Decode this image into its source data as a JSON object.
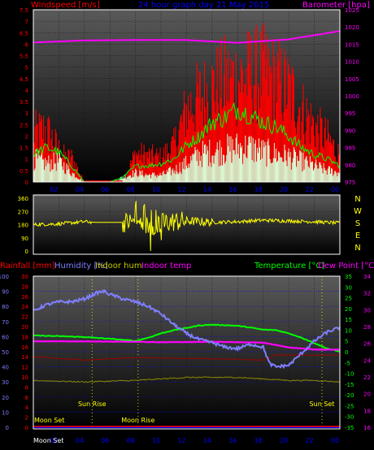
{
  "header": {
    "windspeed_label": "Windspeed [m/s]",
    "title": "24 hour graph day  21 May 2015",
    "barometer_label": "Barometer [hpa]"
  },
  "colors": {
    "red": "#ff0000",
    "blue": "#0000ff",
    "magenta": "#ff00ff",
    "green": "#00ff00",
    "yellow": "#ffff00",
    "lightblue": "#7f7fff",
    "grey": "#9a9aaa",
    "panel_top": "#5a5a5a",
    "panel_bottom": "#000000",
    "white": "#ffffff"
  },
  "chart_data": [
    {
      "type": "line",
      "panel": "wind",
      "x_ticks": [
        "02",
        "04",
        "06",
        "08",
        "10",
        "12",
        "14",
        "16",
        "18",
        "20",
        "22",
        "00"
      ],
      "y_left_ticks": [
        "0",
        "0.5",
        "1",
        "1.5",
        "2",
        "2.5",
        "3",
        "3.5",
        "4",
        "4.5",
        "5",
        "5.5",
        "6",
        "6.5",
        "7",
        "7.5"
      ],
      "ylim_left": [
        0,
        7.5
      ],
      "y_right_ticks": [
        "975",
        "980",
        "985",
        "990",
        "995",
        "1000",
        "1005",
        "1010",
        "1015",
        "1020",
        "1025"
      ],
      "ylim_right": [
        975,
        1025
      ],
      "grid": true,
      "series": [
        {
          "axis": "right",
          "color": "magenta",
          "hours": [
            0,
            4,
            8,
            12,
            16,
            20,
            24
          ],
          "values": [
            1015.5,
            1016.1,
            1016.2,
            1016.2,
            1015.4,
            1016.4,
            1018.8
          ]
        },
        {
          "axis": "left",
          "color": "red",
          "kind": "gust",
          "hours": [
            0,
            1,
            2,
            2.5,
            3,
            4,
            6,
            7,
            8,
            9,
            10,
            11,
            12,
            13,
            14,
            15,
            16,
            17,
            18,
            19,
            20,
            21,
            22,
            23,
            24
          ],
          "values": [
            2.4,
            2.6,
            1.6,
            1.2,
            1.2,
            0.0,
            0.0,
            0.0,
            1.4,
            1.3,
            1.2,
            1.8,
            3.6,
            4.2,
            4.6,
            5.0,
            5.1,
            5.3,
            5.4,
            5.0,
            4.6,
            3.6,
            2.8,
            2.2,
            1.3
          ]
        },
        {
          "axis": "left",
          "color": "green",
          "kind": "average",
          "hours": [
            0,
            1,
            2,
            3,
            4,
            6,
            7,
            8,
            9,
            10,
            11,
            12,
            13,
            14,
            15,
            16,
            17,
            18,
            19,
            20,
            21,
            22,
            23,
            24
          ],
          "values": [
            1.2,
            1.5,
            1.3,
            0.7,
            0.0,
            0.0,
            0.2,
            0.7,
            0.7,
            0.8,
            1.0,
            1.6,
            2.0,
            2.6,
            2.8,
            3.2,
            2.9,
            2.6,
            2.4,
            2.0,
            1.5,
            1.2,
            1.0,
            0.7
          ]
        },
        {
          "axis": "left",
          "color": "white",
          "kind": "speed",
          "hours": [
            0,
            1,
            2,
            3,
            4,
            6,
            7,
            8,
            9,
            10,
            11,
            12,
            13,
            14,
            15,
            16,
            17,
            18,
            19,
            20,
            21,
            22,
            23,
            24
          ],
          "values": [
            1.0,
            0.8,
            0.9,
            0.4,
            0.0,
            0.0,
            0.2,
            0.4,
            0.3,
            0.3,
            0.5,
            0.8,
            1.2,
            1.3,
            1.4,
            1.5,
            1.5,
            1.3,
            1.2,
            1.1,
            0.9,
            0.7,
            0.5,
            0.4
          ]
        }
      ]
    },
    {
      "type": "line",
      "panel": "direction",
      "y_ticks": [
        "0",
        "90",
        "180",
        "270",
        "360"
      ],
      "ylim": [
        0,
        360
      ],
      "compass_labels": [
        "N",
        "W",
        "S",
        "E",
        "N"
      ],
      "series": [
        {
          "color": "yellow",
          "hours": [
            0,
            2,
            4,
            5,
            6,
            7,
            8,
            9,
            10,
            11,
            12,
            14,
            16,
            18,
            20,
            22,
            24
          ],
          "values": [
            180,
            185,
            200,
            195,
            195,
            195,
            200,
            170,
            190,
            200,
            205,
            195,
            200,
            210,
            205,
            200,
            190
          ]
        }
      ]
    },
    {
      "type": "line",
      "panel": "temperature",
      "labels": {
        "rainfall": "Rainfall [mm]",
        "humidity": "Humidity [%]",
        "indoor_hum": "Indoor hum",
        "indoor_temp": "Indoor temp",
        "temperature": "Temperature [°C]",
        "dew_point": "Dew Point [°C]"
      },
      "y_humidity_ticks": [
        "0",
        "10",
        "20",
        "30",
        "40",
        "50",
        "60",
        "70",
        "80",
        "90",
        "100"
      ],
      "ylim_humidity": [
        0,
        100
      ],
      "y_rain_ticks": [
        "0",
        "2",
        "4",
        "6",
        "8",
        "10",
        "12",
        "14",
        "16",
        "18",
        "20",
        "22",
        "24",
        "26",
        "28",
        "30"
      ],
      "ylim_rain": [
        0,
        30
      ],
      "y_temp_ticks": [
        "-35",
        "-30",
        "-25",
        "-20",
        "-15",
        "-10",
        "-5",
        "0",
        "5",
        "10",
        "15",
        "20",
        "25",
        "30",
        "35"
      ],
      "ylim_temp": [
        -35,
        35
      ],
      "y_indoor_ticks": [
        "16",
        "18",
        "20",
        "22",
        "24",
        "26",
        "28",
        "30",
        "32",
        "34"
      ],
      "ylim_indoor": [
        16,
        34
      ],
      "x_ticks": [
        "02",
        "04",
        "06",
        "08",
        "10",
        "12",
        "14",
        "16",
        "18",
        "20",
        "22",
        "00"
      ],
      "x_first_label": "Moon Set",
      "events": [
        {
          "label": "Moon Set",
          "hour": 0.0
        },
        {
          "label": "Sun Rise",
          "hour": 4.6
        },
        {
          "label": "Moon Rise",
          "hour": 8.2
        },
        {
          "label": "Sun Set",
          "hour": 22.6
        }
      ],
      "series": [
        {
          "name": "Humidity",
          "axis": "humidity",
          "color": "lightblue",
          "hours": [
            0,
            1,
            2,
            3,
            4,
            5,
            5.5,
            6,
            7,
            8,
            9,
            10,
            11,
            12,
            13,
            14,
            15,
            16,
            17,
            18,
            18.5,
            19,
            20,
            21,
            22,
            23,
            24
          ],
          "values": [
            77,
            81,
            83,
            83,
            85,
            89,
            90,
            88,
            85,
            83,
            80,
            75,
            68,
            62,
            58,
            56,
            53,
            52,
            55,
            53,
            42,
            40,
            41,
            49,
            57,
            63,
            66
          ]
        },
        {
          "name": "Temperature",
          "axis": "temp",
          "color": "green",
          "hours": [
            0,
            2,
            4,
            6,
            7,
            8,
            9,
            10,
            11,
            12,
            13,
            14,
            15,
            16,
            17,
            18,
            19,
            20,
            21,
            22,
            23,
            24
          ],
          "values": [
            7.5,
            7.2,
            6.8,
            6.0,
            5.5,
            5.0,
            6.5,
            8.5,
            10.0,
            11.0,
            12.2,
            12.5,
            12.3,
            12.0,
            11.2,
            10.2,
            10.0,
            8.5,
            6.5,
            4.0,
            1.5,
            0.0
          ]
        },
        {
          "name": "Dew Point",
          "axis": "temp",
          "color": "magenta",
          "hours": [
            0,
            2,
            4,
            6,
            8,
            10,
            12,
            14,
            16,
            18,
            20,
            22,
            24
          ],
          "values": [
            4.8,
            4.8,
            4.8,
            4.7,
            4.6,
            4.4,
            4.5,
            4.6,
            4.4,
            4.2,
            2.0,
            1.0,
            1.0
          ]
        },
        {
          "name": "Indoor temp",
          "axis": "indoor",
          "color": "red",
          "hours": [
            0,
            4,
            8,
            12,
            16,
            18,
            19,
            22,
            24
          ],
          "values": [
            24.4,
            24.0,
            24.3,
            24.2,
            24.1,
            24.0,
            24.6,
            24.6,
            24.6
          ]
        },
        {
          "name": "Indoor hum",
          "axis": "humidity",
          "color": "yellow",
          "hours": [
            0,
            4,
            8,
            10,
            12,
            16,
            18,
            20,
            22,
            24
          ],
          "values": [
            31,
            30,
            31,
            32,
            33,
            33,
            32,
            31,
            31,
            30
          ]
        },
        {
          "name": "Rainfall",
          "axis": "rain",
          "color": "blue",
          "hours": [
            0,
            24
          ],
          "values": [
            0,
            0
          ]
        }
      ]
    }
  ]
}
